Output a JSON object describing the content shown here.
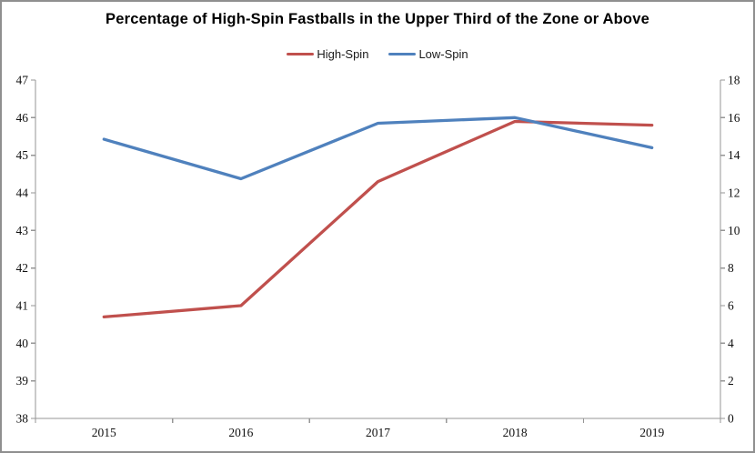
{
  "chart": {
    "title": "Percentage of High-Spin Fastballs in the Upper Third of the Zone or Above"
  },
  "chart_data": {
    "type": "line",
    "title": "Percentage of High-Spin Fastballs in the Upper Third of the Zone or Above",
    "categories": [
      "2015",
      "2016",
      "2017",
      "2018",
      "2019"
    ],
    "series": [
      {
        "name": "High-Spin",
        "axis": "left",
        "color": "#c0504d",
        "values": [
          40.7,
          41.0,
          44.3,
          45.9,
          45.8
        ]
      },
      {
        "name": "Low-Spin",
        "axis": "right",
        "color": "#4f81bd",
        "values": [
          14.85,
          12.75,
          15.7,
          16.0,
          14.4
        ]
      }
    ],
    "left_axis": {
      "min": 38,
      "max": 47,
      "step": 1,
      "tick_labels": [
        "38",
        "39",
        "40",
        "41",
        "42",
        "43",
        "44",
        "45",
        "46",
        "47"
      ]
    },
    "right_axis": {
      "min": 0,
      "max": 18,
      "step": 2,
      "tick_labels": [
        "0",
        "2",
        "4",
        "6",
        "8",
        "10",
        "12",
        "14",
        "16",
        "18"
      ]
    },
    "grid": false,
    "legend_position": "top",
    "axis_color": "#969696",
    "text_color": "#111111"
  }
}
